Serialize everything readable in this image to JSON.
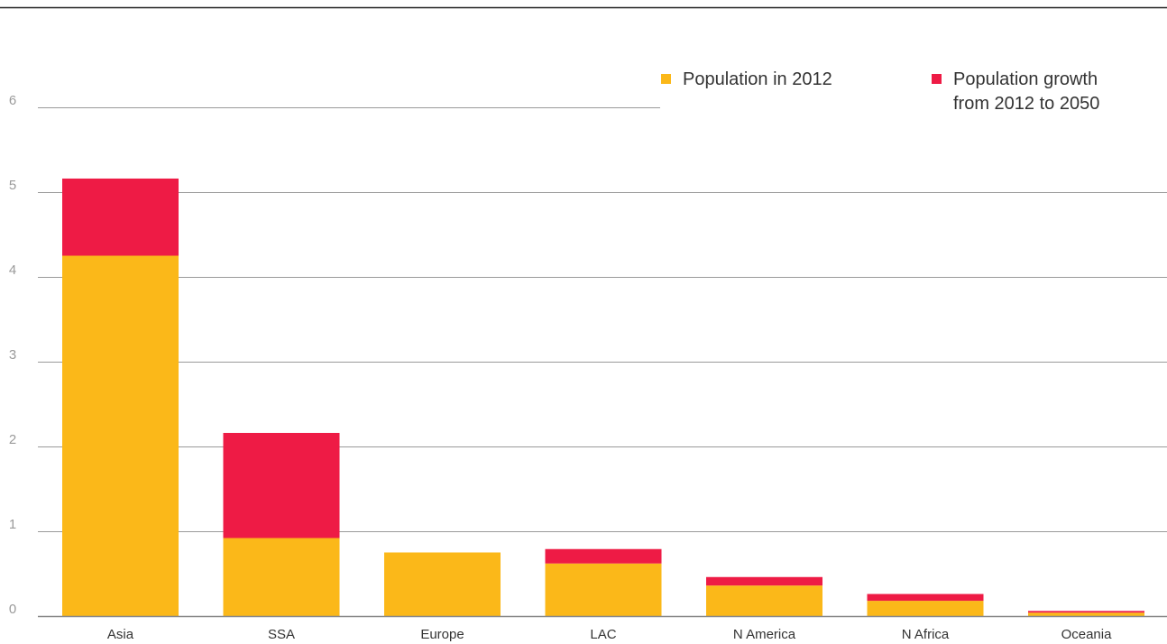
{
  "chart_data": {
    "type": "bar",
    "stacked": true,
    "categories": [
      "Asia",
      "SSA",
      "Europe",
      "LAC",
      "N America",
      "N Africa",
      "Oceania"
    ],
    "series": [
      {
        "name": "Population in 2012",
        "values": [
          4.25,
          0.92,
          0.75,
          0.62,
          0.36,
          0.18,
          0.04
        ],
        "color": "#FBB819"
      },
      {
        "name": "Population growth from 2012 to 2050",
        "values": [
          0.91,
          1.24,
          0.0,
          0.17,
          0.1,
          0.08,
          0.02
        ],
        "color": "#EE1B45"
      }
    ],
    "legend": [
      {
        "lines": [
          "Population in 2012"
        ],
        "color": "#FBB819"
      },
      {
        "lines": [
          "Population growth",
          "from 2012 to 2050"
        ],
        "color": "#EE1B45"
      }
    ],
    "yticks": [
      "0",
      "1",
      "2",
      "3",
      "4",
      "5",
      "6"
    ],
    "ylim": [
      0,
      6
    ],
    "grid": true,
    "legend_position": "top-right",
    "title": "",
    "xlabel": "",
    "ylabel": ""
  }
}
